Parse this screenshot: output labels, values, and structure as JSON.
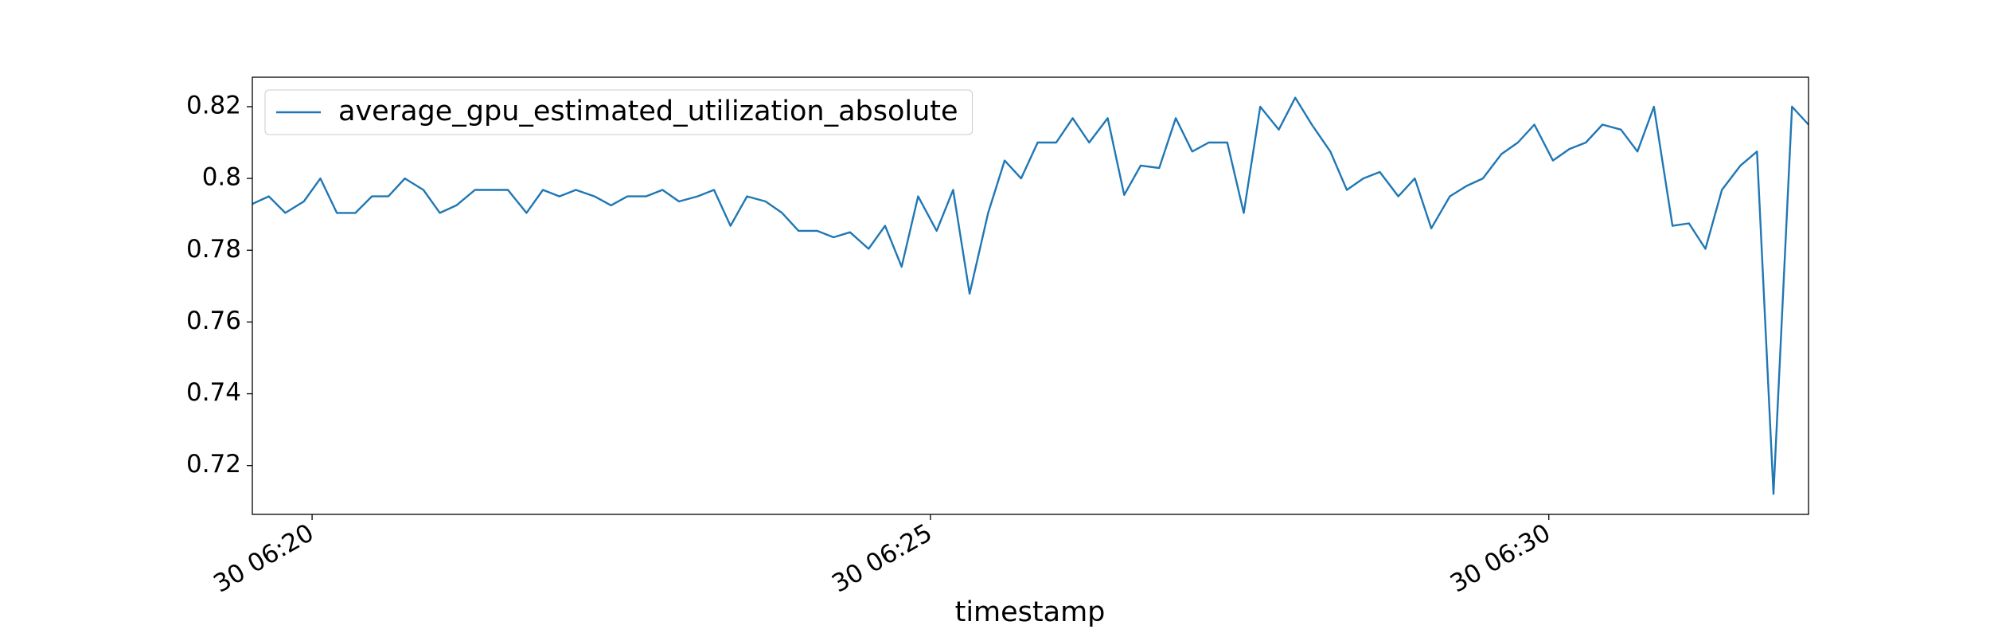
{
  "chart_data": {
    "type": "line",
    "x_label": "timestamp",
    "x": [
      "30 06:19:31",
      "30 06:19:39",
      "30 06:19:47",
      "30 06:19:56",
      "30 06:20:04",
      "30 06:20:12",
      "30 06:20:21",
      "30 06:20:29",
      "30 06:20:37",
      "30 06:20:45",
      "30 06:20:54",
      "30 06:21:02",
      "30 06:21:10",
      "30 06:21:19",
      "30 06:21:27",
      "30 06:21:35",
      "30 06:21:44",
      "30 06:21:52",
      "30 06:22:00",
      "30 06:22:08",
      "30 06:22:17",
      "30 06:22:25",
      "30 06:22:33",
      "30 06:22:42",
      "30 06:22:50",
      "30 06:22:58",
      "30 06:23:07",
      "30 06:23:15",
      "30 06:23:23",
      "30 06:23:31",
      "30 06:23:40",
      "30 06:23:48",
      "30 06:23:56",
      "30 06:24:05",
      "30 06:24:13",
      "30 06:24:21",
      "30 06:24:30",
      "30 06:24:38",
      "30 06:24:46",
      "30 06:24:54",
      "30 06:25:03",
      "30 06:25:11",
      "30 06:25:19",
      "30 06:25:28",
      "30 06:25:36",
      "30 06:25:44",
      "30 06:25:52",
      "30 06:26:01",
      "30 06:26:09",
      "30 06:26:17",
      "30 06:26:26",
      "30 06:26:34",
      "30 06:26:42",
      "30 06:26:51",
      "30 06:26:59",
      "30 06:27:07",
      "30 06:27:15",
      "30 06:27:24",
      "30 06:27:32",
      "30 06:27:40",
      "30 06:27:49",
      "30 06:27:57",
      "30 06:28:05",
      "30 06:28:14",
      "30 06:28:22",
      "30 06:28:30",
      "30 06:28:38",
      "30 06:28:47",
      "30 06:28:55",
      "30 06:29:03",
      "30 06:29:12",
      "30 06:29:20",
      "30 06:29:28",
      "30 06:29:37",
      "30 06:29:45",
      "30 06:29:53",
      "30 06:30:02",
      "30 06:30:10",
      "30 06:30:18",
      "30 06:30:26",
      "30 06:30:35",
      "30 06:30:43",
      "30 06:30:51",
      "30 06:31:00",
      "30 06:31:08",
      "30 06:31:16",
      "30 06:31:24",
      "30 06:31:33",
      "30 06:31:41",
      "30 06:31:49",
      "30 06:31:58",
      "30 06:32:06"
    ],
    "series": [
      {
        "name": "average_gpu_estimated_utilization_absolute",
        "color": "#1f77b4",
        "values": [
          0.7929,
          0.795,
          0.7904,
          0.7936,
          0.8,
          0.7904,
          0.7904,
          0.795,
          0.795,
          0.8,
          0.7968,
          0.7904,
          0.7925,
          0.7968,
          0.7968,
          0.7968,
          0.7904,
          0.7968,
          0.795,
          0.7968,
          0.795,
          0.7925,
          0.795,
          0.795,
          0.7968,
          0.7936,
          0.795,
          0.7968,
          0.7868,
          0.795,
          0.7936,
          0.7904,
          0.7854,
          0.7854,
          0.7836,
          0.785,
          0.7804,
          0.7868,
          0.7754,
          0.795,
          0.7854,
          0.7968,
          0.7679,
          0.7904,
          0.805,
          0.8,
          0.81,
          0.81,
          0.8168,
          0.81,
          0.8168,
          0.7954,
          0.8036,
          0.8029,
          0.8168,
          0.8075,
          0.81,
          0.81,
          0.7904,
          0.82,
          0.8136,
          0.8225,
          0.815,
          0.8075,
          0.7968,
          0.8,
          0.8018,
          0.795,
          0.8,
          0.7861,
          0.795,
          0.7979,
          0.8,
          0.8068,
          0.81,
          0.815,
          0.805,
          0.8082,
          0.81,
          0.815,
          0.8136,
          0.8075,
          0.82,
          0.7868,
          0.7875,
          0.7804,
          0.7968,
          0.8036,
          0.8075,
          0.7121,
          0.82,
          0.815
        ]
      }
    ],
    "xlim": [
      "30 06:19:31",
      "30 06:32:06"
    ],
    "xticks": [
      "30 06:20",
      "30 06:25",
      "30 06:30"
    ],
    "ylim": [
      0.7064,
      0.8282
    ],
    "yticks": [
      0.72,
      0.74,
      0.76,
      0.78,
      0.8,
      0.82
    ],
    "legend": "upper left"
  }
}
